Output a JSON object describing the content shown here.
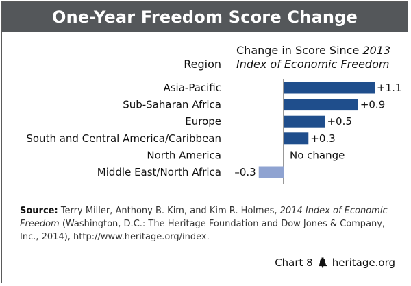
{
  "title": "One-Year Freedom Score Change",
  "headers": {
    "region": "Region",
    "change_line1_plain": "Change in Score Since ",
    "change_line1_italic": "2013",
    "change_line2": "Index of Economic Freedom"
  },
  "colors": {
    "title_bar": "#54575a",
    "positive_bar": "#1f4e8c",
    "negative_bar": "#8fa3d1",
    "axis": "#333333"
  },
  "chart_data": {
    "type": "bar",
    "orientation": "horizontal",
    "categories": [
      "Asia-Pacific",
      "Sub-Saharan Africa",
      "Europe",
      "South and Central America/Caribbean",
      "North America",
      "Middle East/North Africa"
    ],
    "values": [
      1.1,
      0.9,
      0.5,
      0.3,
      0,
      -0.3
    ],
    "value_labels": [
      "+1.1",
      "+0.9",
      "+0.5",
      "+0.3",
      "No change",
      "–0.3"
    ],
    "xlim": [
      -0.3,
      1.1
    ],
    "grid": false
  },
  "source": {
    "label": "Source:",
    "text_before": " Terry Miller, Anthony B. Kim, and Kim R. Holmes, ",
    "italic_title": "2014 Index of Economic Freedom",
    "text_after": " (Washington, D.C.: The Heritage Foundation and Dow Jones & Company, Inc., 2014), http://www.heritage.org/index."
  },
  "footer": {
    "chart_label": "Chart 8",
    "brand_icon": "liberty-bell-icon",
    "brand": "heritage.org"
  }
}
